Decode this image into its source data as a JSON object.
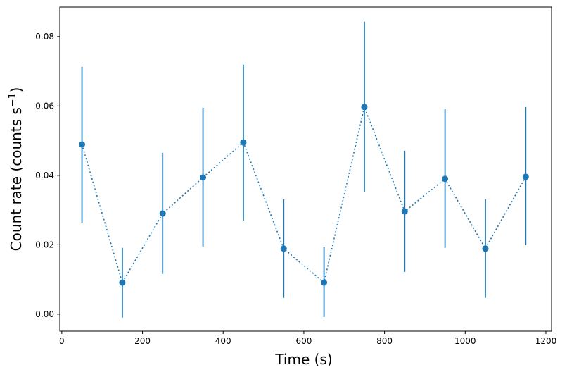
{
  "chart_data": {
    "type": "scatter",
    "title": "",
    "xlabel": "Time (s)",
    "ylabel_main": "Count rate (counts s",
    "ylabel_sup": "−1",
    "ylabel_close": ")",
    "xlim": [
      -5,
      1214
    ],
    "ylim": [
      -0.0049,
      0.0885
    ],
    "xticks": [
      0,
      200,
      400,
      600,
      800,
      1000,
      1200
    ],
    "xtick_labels": [
      "0",
      "200",
      "400",
      "600",
      "800",
      "1000",
      "1200"
    ],
    "yticks": [
      0,
      0.02,
      0.04,
      0.06,
      0.08
    ],
    "ytick_labels": [
      "0.00",
      "0.02",
      "0.04",
      "0.06",
      "0.08"
    ],
    "grid": false,
    "color": "#1f77b4",
    "line_style": "dotted",
    "series": [
      {
        "name": "count rate",
        "x": [
          50,
          150,
          250,
          350,
          450,
          550,
          650,
          750,
          850,
          950,
          1050,
          1150
        ],
        "y": [
          0.0489,
          0.0091,
          0.029,
          0.0394,
          0.0495,
          0.0189,
          0.0091,
          0.0597,
          0.0296,
          0.039,
          0.0189,
          0.0396
        ],
        "y_err_low": [
          0.0264,
          -0.001,
          0.0116,
          0.0195,
          0.027,
          0.0047,
          -0.0008,
          0.0353,
          0.0122,
          0.0191,
          0.0047,
          0.0199
        ],
        "y_err_high": [
          0.0713,
          0.0191,
          0.0465,
          0.0595,
          0.0719,
          0.0331,
          0.0193,
          0.0843,
          0.0471,
          0.0591,
          0.0331,
          0.0597
        ]
      }
    ]
  }
}
